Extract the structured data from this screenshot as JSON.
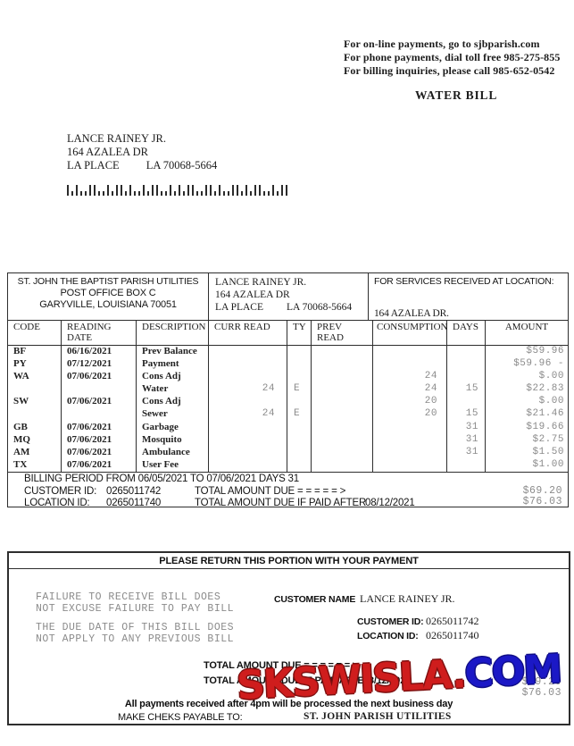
{
  "header": {
    "info_lines": [
      "For on-line payments, go to sjbparish.com",
      "For phone payments, dial toll free 985-275-855",
      "For billing inquiries, please call 985-652-0542"
    ],
    "title": "WATER BILL"
  },
  "mailing_address": {
    "name": "LANCE RAINEY JR.",
    "street": "164 AZALEA DR",
    "city": "LA PLACE",
    "state_zip": "LA 70068-5664"
  },
  "bill_header": {
    "utility": {
      "line1": "ST. JOHN THE BAPTIST PARISH UTILITIES",
      "line2": "POST OFFICE BOX C",
      "line3": "GARYVILLE, LOUISIANA 70051"
    },
    "customer": {
      "name": "LANCE RAINEY JR.",
      "street": "164 AZALEA DR",
      "city": "LA PLACE",
      "state_zip": "LA 70068-5664"
    },
    "service_location": {
      "label": "FOR SERVICES RECEIVED AT LOCATION:",
      "address": "164 AZALEA DR."
    }
  },
  "charges_table": {
    "headers": [
      "CODE",
      "READING\nDATE",
      "DESCRIPTION",
      "CURR READ",
      "TY",
      "PREV\nREAD",
      "CONSUMPTION",
      "DAYS",
      "AMOUNT"
    ],
    "rows": [
      {
        "code": "BF",
        "date": "06/16/2021",
        "description": "Prev Balance",
        "curr_read": "",
        "ty": "",
        "prev_read": "",
        "consumption": "",
        "days": "",
        "amount": "$59.96"
      },
      {
        "code": "PY",
        "date": "07/12/2021",
        "description": "Payment",
        "curr_read": "",
        "ty": "",
        "prev_read": "",
        "consumption": "",
        "days": "",
        "amount": "$59.96 -"
      },
      {
        "code": "WA",
        "date": "07/06/2021",
        "description": "Cons Adj",
        "curr_read": "",
        "ty": "",
        "prev_read": "",
        "consumption": "24",
        "days": "",
        "amount": "$.00"
      },
      {
        "code": "",
        "date": "",
        "description": "Water",
        "curr_read": "24",
        "ty": "E",
        "prev_read": "",
        "consumption": "24",
        "days": "15",
        "amount": "$22.83"
      },
      {
        "code": "SW",
        "date": "07/06/2021",
        "description": "Cons Adj",
        "curr_read": "",
        "ty": "",
        "prev_read": "",
        "consumption": "20",
        "days": "",
        "amount": "$.00"
      },
      {
        "code": "",
        "date": "",
        "description": "Sewer",
        "curr_read": "24",
        "ty": "E",
        "prev_read": "",
        "consumption": "20",
        "days": "15",
        "amount": "$21.46"
      },
      {
        "code": "GB",
        "date": "07/06/2021",
        "description": "Garbage",
        "curr_read": "",
        "ty": "",
        "prev_read": "",
        "consumption": "",
        "days": "31",
        "amount": "$19.66"
      },
      {
        "code": "MQ",
        "date": "07/06/2021",
        "description": "Mosquito",
        "curr_read": "",
        "ty": "",
        "prev_read": "",
        "consumption": "",
        "days": "31",
        "amount": "$2.75"
      },
      {
        "code": "AM",
        "date": "07/06/2021",
        "description": "Ambulance",
        "curr_read": "",
        "ty": "",
        "prev_read": "",
        "consumption": "",
        "days": "31",
        "amount": "$1.50"
      },
      {
        "code": "TX",
        "date": "07/06/2021",
        "description": "User Fee",
        "curr_read": "",
        "ty": "",
        "prev_read": "",
        "consumption": "",
        "days": "",
        "amount": "$1.00"
      }
    ]
  },
  "summary": {
    "billing_period": "BILLING PERIOD FROM 06/05/2021 TO 07/06/2021 DAYS 31",
    "customer_id_label": "CUSTOMER ID:",
    "customer_id": "0265011742",
    "total_due_label": "TOTAL AMOUNT DUE = = = = = >",
    "total_due": "$69.20",
    "location_id_label": "LOCATION ID:",
    "location_id": "0265011740",
    "total_due_after_label": "TOTAL AMOUNT DUE IF PAID AFTER",
    "due_after_date": "08/12/2021",
    "total_due_after": "$76.03"
  },
  "stub": {
    "title": "PLEASE RETURN THIS PORTION WITH YOUR PAYMENT",
    "notice1_line1": "FAILURE TO RECEIVE BILL DOES",
    "notice1_line2": "NOT EXCUSE FAILURE TO PAY BILL",
    "notice2_line1": "THE DUE DATE OF THIS BILL DOES",
    "notice2_line2": "NOT APPLY TO ANY PREVIOUS BILL",
    "customer_name_label": "CUSTOMER NAME",
    "customer_name": "LANCE RAINEY JR.",
    "customer_id_label": "CUSTOMER ID:",
    "customer_id": "0265011742",
    "location_id_label": "LOCATION ID:",
    "location_id": "0265011740",
    "total_due_label": "TOTAL AMOUNT DUE = = = = = = >",
    "total_due_after_label": "TOTAL AMOUNT DUE IF PAID AFTER",
    "due_after_date": "08/12/2021",
    "total_due": "$69.20",
    "total_due_after": "$76.03",
    "footnote": "All payments received after 4pm will be processed the next business day",
    "payable_label": "MAKE CHEKS PAYABLE TO:",
    "payee": "ST. JOHN PARISH UTILITIES"
  },
  "watermark": {
    "red_text": "SKSWISLA",
    "dot": ".",
    "blue_text": "COM",
    "red_color": "#cf1d1d",
    "blue_color": "#1b18c6"
  },
  "barcode": {
    "pattern": "TSTSSTTSSTSTTSTSSTSTTSSTSTSTTSSTTSTSSTTSTSTTSSTSTT"
  }
}
